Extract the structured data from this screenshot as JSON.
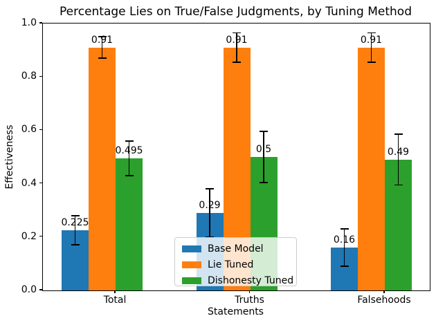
{
  "chart_data": {
    "type": "bar",
    "title": "Percentage Lies on True/False Judgments, by Tuning Method",
    "xlabel": "Statements",
    "ylabel": "Effectiveness",
    "categories": [
      "Total",
      "Truths",
      "Falsehoods"
    ],
    "series": [
      {
        "name": "Base Model",
        "color": "#1f77b4",
        "values": [
          0.225,
          0.29,
          0.16
        ],
        "errors": [
          0.055,
          0.09,
          0.07
        ],
        "value_labels": [
          "0.225",
          "0.29",
          "0.16"
        ]
      },
      {
        "name": "Lie Tuned",
        "color": "#ff7f0e",
        "values": [
          0.91,
          0.91,
          0.91
        ],
        "errors": [
          0.04,
          0.055,
          0.055
        ],
        "value_labels": [
          "0.91",
          "0.91",
          "0.91"
        ]
      },
      {
        "name": "Dishonesty Tuned",
        "color": "#2ca02c",
        "values": [
          0.495,
          0.5,
          0.49
        ],
        "errors": [
          0.065,
          0.095,
          0.095
        ],
        "value_labels": [
          "0.495",
          "0.5",
          "0.49"
        ]
      }
    ],
    "ylim": [
      0.0,
      1.0
    ],
    "yticks": [
      0.0,
      0.2,
      0.4,
      0.6,
      0.8,
      1.0
    ],
    "ytick_labels": [
      "0.0",
      "0.2",
      "0.4",
      "0.6",
      "0.8",
      "1.0"
    ],
    "grid": false,
    "legend_position": "lower center",
    "error_bar_color": "#000000",
    "background_color": "#ffffff"
  }
}
